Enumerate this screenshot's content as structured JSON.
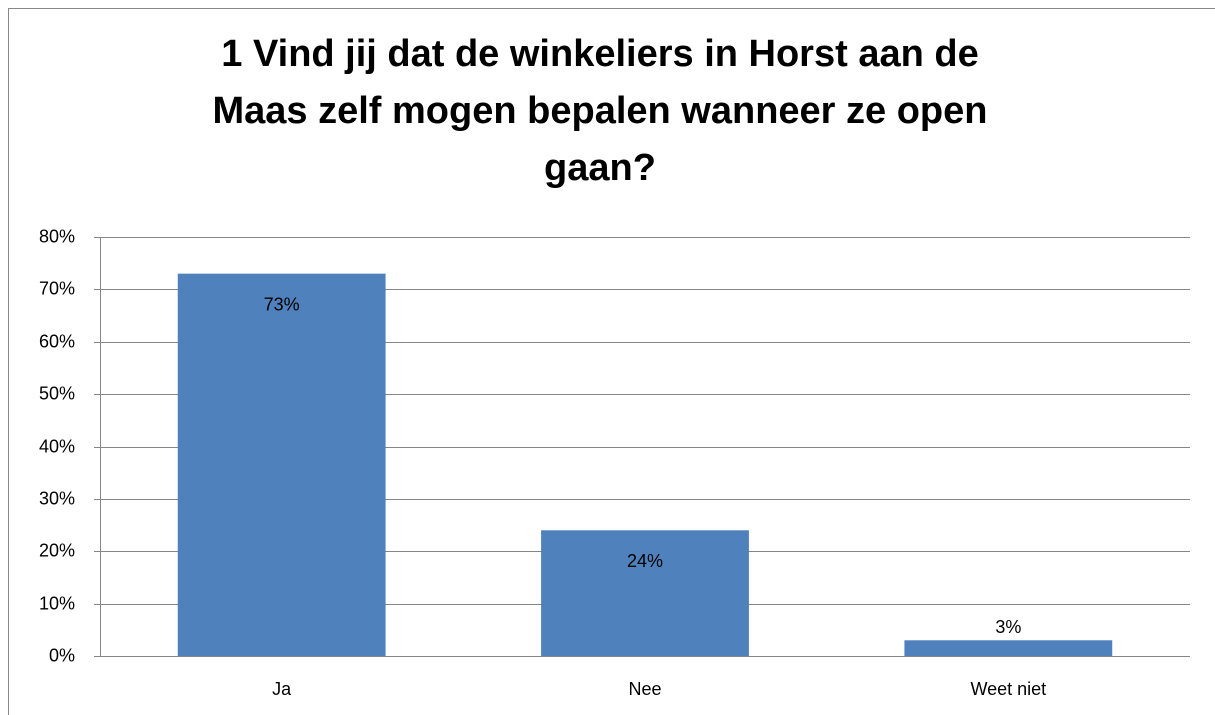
{
  "chart_data": {
    "type": "bar",
    "title": "1 Vind jij dat de winkeliers in Horst aan de Maas zelf mogen bepalen wanneer ze open gaan?",
    "categories": [
      "Ja",
      "Nee",
      "Weet niet"
    ],
    "values": [
      73,
      24,
      3
    ],
    "value_labels": [
      "73%",
      "24%",
      "3%"
    ],
    "color": "#4f81bd",
    "ylim": [
      0,
      80
    ],
    "yticks": [
      {
        "value": 0,
        "label": "0%"
      },
      {
        "value": 10,
        "label": "10%"
      },
      {
        "value": 20,
        "label": "20%"
      },
      {
        "value": 30,
        "label": "30%"
      },
      {
        "value": 40,
        "label": "40%"
      },
      {
        "value": 50,
        "label": "50%"
      },
      {
        "value": 60,
        "label": "60%"
      },
      {
        "value": 70,
        "label": "70%"
      },
      {
        "value": 80,
        "label": "80%"
      }
    ],
    "grid": true
  }
}
